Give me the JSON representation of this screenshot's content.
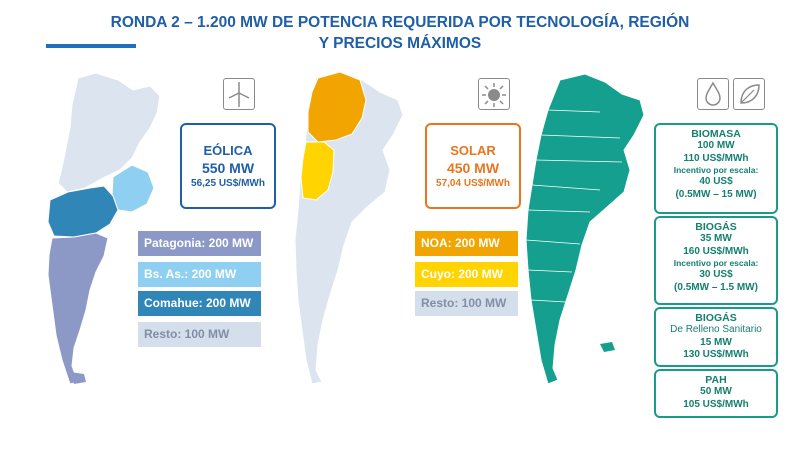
{
  "title": {
    "line1": "RONDA 2 – 1.200 MW DE POTENCIA REQUERIDA POR TECNOLOGÍA, REGIÓN",
    "line2": "Y PRECIOS MÁXIMOS"
  },
  "colors": {
    "title": "#1f5fa8",
    "map_base": "#dbe4ef",
    "patagonia": "#8c99c6",
    "bsas": "#8fd0f2",
    "comahue": "#2f86b7",
    "resto_bar": "#d5dfec",
    "noa": "#f2a400",
    "cuyo": "#ffd400",
    "teal": "#149f8e"
  },
  "eolica": {
    "icon": "wind-turbine-icon",
    "title": "EÓLICA",
    "mw": "550 MW",
    "price": "56,25 US$/MWh",
    "bars": [
      {
        "label": "Patagonia: 200 MW"
      },
      {
        "label": "Bs. As.: 200 MW"
      },
      {
        "label": "Comahue: 200 MW"
      },
      {
        "label": "Resto: 100 MW"
      }
    ]
  },
  "solar": {
    "icon": "sun-icon",
    "title": "SOLAR",
    "mw": "450 MW",
    "price": "57,04 US$/MWh",
    "bars": [
      {
        "label": "NOA: 200 MW"
      },
      {
        "label": "Cuyo: 200 MW"
      },
      {
        "label": "Resto: 100 MW"
      }
    ]
  },
  "others": {
    "icons": [
      "water-drop-icon",
      "leaf-icon"
    ],
    "biomasa": {
      "title": "BIOMASA",
      "mw": "100 MW",
      "price": "110 US$/MWh",
      "incentive_label": "Incentivo por escala:",
      "incentive_value": "40 US$",
      "range": "(0.5MW – 15 MW)"
    },
    "biogas": {
      "title": "BIOGÁS",
      "mw": "35 MW",
      "price": "160 US$/MWh",
      "incentive_label": "Incentivo por escala:",
      "incentive_value": "30 US$",
      "range": "(0.5MW – 1.5 MW)"
    },
    "biogas_relleno": {
      "title": "BIOGÁS",
      "subtitle": "De Relleno Sanitario",
      "mw": "15 MW",
      "price": "130 US$/MWh"
    },
    "pah": {
      "title": "PAH",
      "mw": "50 MW",
      "price": "105 US$/MWh"
    }
  }
}
